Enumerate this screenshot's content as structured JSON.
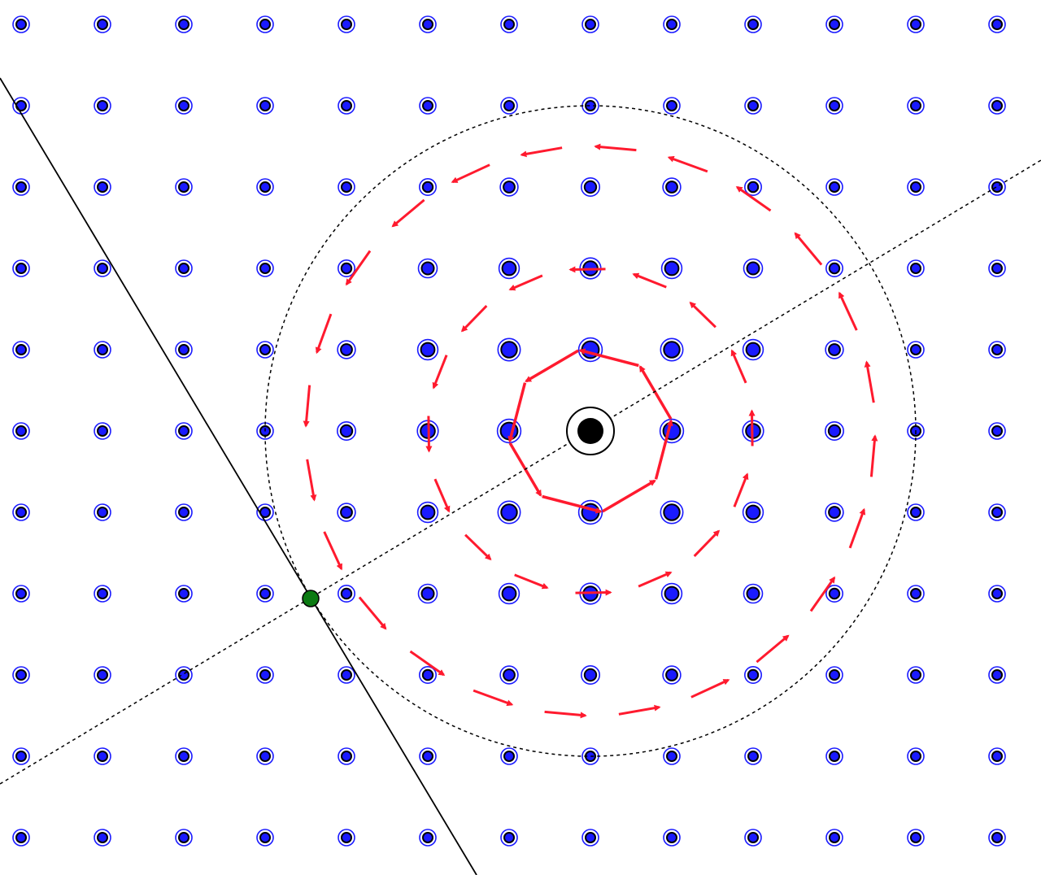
{
  "diagram": {
    "colors": {
      "background": "#ffffff",
      "site_ring": "#1a1aff",
      "site_fill": "#1a1aff",
      "site_core": "#000000",
      "arrow": "#ff1a2e",
      "center": "#000000",
      "line": "#000000",
      "intersection_point": "#0b7a12"
    },
    "lattice": {
      "columns": 13,
      "rows": 11
    },
    "arrow_rings": [
      {
        "ring": 1,
        "arrow_count": 8,
        "dashed": false
      },
      {
        "ring": 2,
        "arrow_count": 16,
        "dashed": true
      },
      {
        "ring": 3,
        "arrow_count": 24,
        "dashed": true
      }
    ],
    "elements": [
      "lattice",
      "current-arrows",
      "dashed-circle",
      "cut-line",
      "tangent-line",
      "center-site",
      "intersection-point"
    ]
  }
}
